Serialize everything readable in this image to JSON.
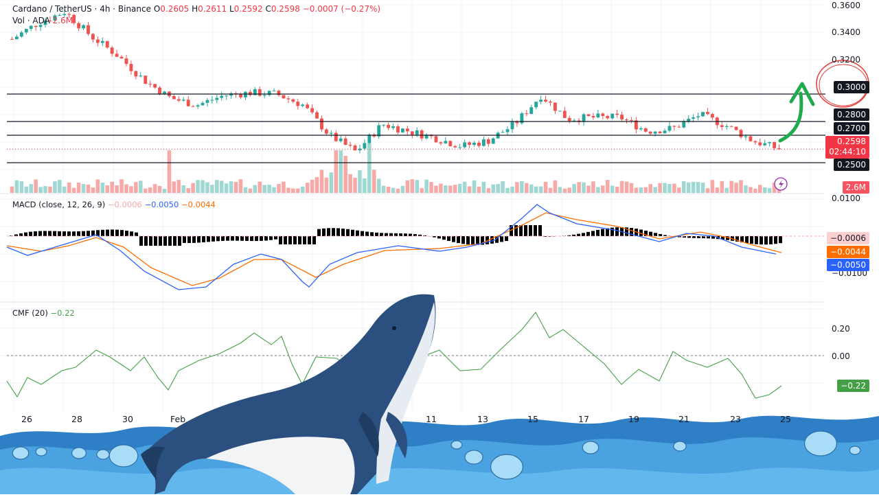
{
  "header": {
    "symbol": "Cardano / TetherUS · 4h · Binance",
    "o_label": "O",
    "o_value": "0.2605",
    "h_label": "H",
    "h_value": "0.2611",
    "l_label": "L",
    "l_value": "0.2592",
    "c_label": "C",
    "c_value": "0.2598",
    "change": "−0.0007 (−0.27%)",
    "vol_label": "Vol · ADA",
    "vol_value": "2.6M"
  },
  "price_axis": {
    "ticks": [
      "0.3600",
      "0.3400",
      "0.3200"
    ],
    "levels": [
      "0.3000",
      "0.2800",
      "0.2700",
      "0.2500"
    ],
    "last_price": "0.2598",
    "countdown": "02:44:10",
    "volume_tag": "2.6M"
  },
  "macd": {
    "label": "MACD (close, 12, 26, 9)",
    "hist_value": "−0.0006",
    "macd_value": "−0.0050",
    "signal_value": "−0.0044",
    "ticks": [
      "0.0100",
      "−0.0100"
    ],
    "tag_hist": "−0.0006",
    "tag_signal": "−0.0044",
    "tag_macd": "−0.0050"
  },
  "cmf": {
    "label": "CMF (20)",
    "value": "−0.22",
    "ticks": [
      "0.20",
      "0.00"
    ],
    "tag": "−0.22"
  },
  "time_axis": [
    "26",
    "28",
    "30",
    "Feb",
    "11",
    "13",
    "15",
    "17",
    "19",
    "21",
    "23",
    "25"
  ],
  "colors": {
    "up": "#26a69a",
    "down": "#ef5350",
    "macd_line": "#2962ff",
    "signal_line": "#ff6d00",
    "cmf_line": "#43a047",
    "arrow": "#1faa4b",
    "circle": "#e53935"
  },
  "chart_data": [
    {
      "type": "candlestick",
      "title": "Cardano / TetherUS · 4h · Binance",
      "ylim": [
        0.245,
        0.365
      ],
      "horizontal_levels": [
        0.3,
        0.28,
        0.27,
        0.25
      ],
      "last_price": 0.2598,
      "close_path": [
        {
          "x": "Jan 26",
          "y": 0.34
        },
        {
          "x": "Jan 27",
          "y": 0.352
        },
        {
          "x": "Jan 28",
          "y": 0.36
        },
        {
          "x": "Jan 29",
          "y": 0.342
        },
        {
          "x": "Jan 30",
          "y": 0.328
        },
        {
          "x": "Jan 31",
          "y": 0.31
        },
        {
          "x": "Feb 1",
          "y": 0.297
        },
        {
          "x": "Feb 2",
          "y": 0.292
        },
        {
          "x": "Feb 3",
          "y": 0.299
        },
        {
          "x": "Feb 4",
          "y": 0.301
        },
        {
          "x": "Feb 5",
          "y": 0.3
        },
        {
          "x": "Feb 6",
          "y": 0.292
        },
        {
          "x": "Feb 7",
          "y": 0.27
        },
        {
          "x": "Feb 8",
          "y": 0.258
        },
        {
          "x": "Feb 9",
          "y": 0.278
        },
        {
          "x": "Feb 10",
          "y": 0.273
        },
        {
          "x": "Feb 11",
          "y": 0.268
        },
        {
          "x": "Feb 12",
          "y": 0.262
        },
        {
          "x": "Feb 13",
          "y": 0.266
        },
        {
          "x": "Feb 14",
          "y": 0.278
        },
        {
          "x": "Feb 15",
          "y": 0.299
        },
        {
          "x": "Feb 16",
          "y": 0.282
        },
        {
          "x": "Feb 17",
          "y": 0.283
        },
        {
          "x": "Feb 18",
          "y": 0.283
        },
        {
          "x": "Feb 19",
          "y": 0.273
        },
        {
          "x": "Feb 20",
          "y": 0.275
        },
        {
          "x": "Feb 21",
          "y": 0.285
        },
        {
          "x": "Feb 22",
          "y": 0.277
        },
        {
          "x": "Feb 23",
          "y": 0.266
        },
        {
          "x": "Feb 24",
          "y": 0.26
        }
      ]
    },
    {
      "type": "bar",
      "title": "Vol · ADA",
      "last_value": "2.6M"
    },
    {
      "type": "line",
      "title": "MACD (close, 12, 26, 9)",
      "ylim": [
        -0.012,
        0.011
      ],
      "series": [
        {
          "name": "MACD",
          "last": -0.005
        },
        {
          "name": "Signal",
          "last": -0.0044
        },
        {
          "name": "Histogram",
          "last": -0.0006
        }
      ]
    },
    {
      "type": "line",
      "title": "CMF (20)",
      "ylim": [
        -0.3,
        0.3
      ],
      "series": [
        {
          "name": "CMF",
          "last": -0.22
        }
      ]
    }
  ]
}
